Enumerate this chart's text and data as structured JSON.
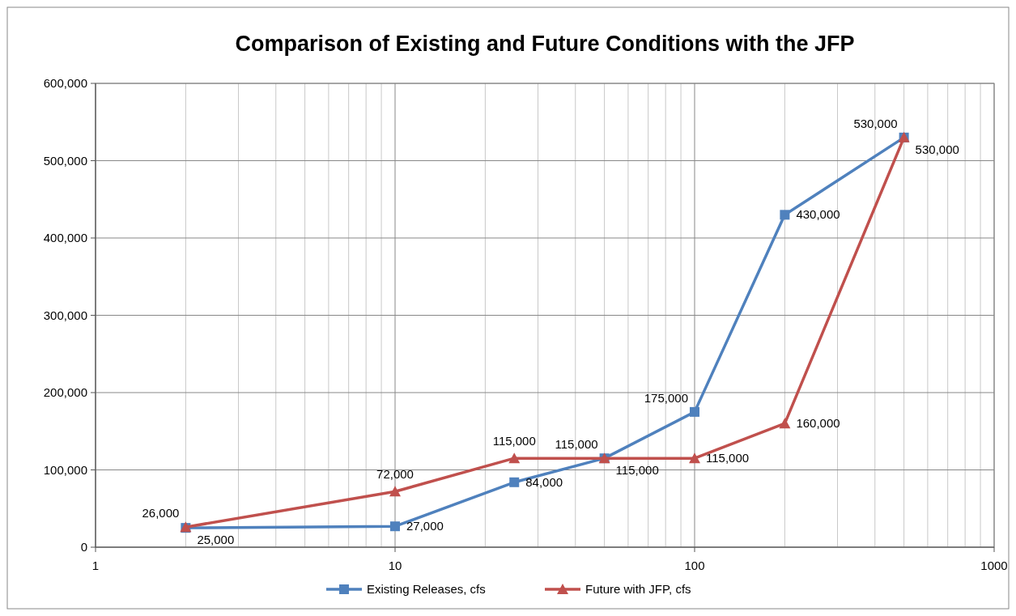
{
  "chart_data": {
    "type": "line",
    "title": "Comparison of Existing and Future Conditions with the JFP",
    "x": [
      2,
      10,
      25,
      50,
      100,
      200,
      500
    ],
    "log": "x",
    "xlim": [
      1,
      1000
    ],
    "xticks": [
      1,
      {
        "value": 2,
        "label": null
      },
      {
        "value": 3,
        "label": null
      },
      {
        "value": 4,
        "label": null
      },
      {
        "value": 5,
        "label": null
      },
      {
        "value": 6,
        "label": null
      },
      {
        "value": 7,
        "label": null
      },
      {
        "value": 8,
        "label": null
      },
      {
        "value": 9,
        "label": null
      },
      10,
      {
        "value": 20,
        "label": null
      },
      {
        "value": 30,
        "label": null
      },
      {
        "value": 40,
        "label": null
      },
      {
        "value": 50,
        "label": null
      },
      {
        "value": 60,
        "label": null
      },
      {
        "value": 70,
        "label": null
      },
      {
        "value": 80,
        "label": null
      },
      {
        "value": 90,
        "label": null
      },
      100,
      {
        "value": 200,
        "label": null
      },
      {
        "value": 300,
        "label": null
      },
      {
        "value": 400,
        "label": null
      },
      {
        "value": 500,
        "label": null
      },
      {
        "value": 600,
        "label": null
      },
      {
        "value": 700,
        "label": null
      },
      {
        "value": 800,
        "label": null
      },
      {
        "value": 900,
        "label": null
      },
      1000
    ],
    "ylim": [
      0,
      600000
    ],
    "yticks": [
      {
        "value": 0,
        "label": "0"
      },
      {
        "value": 100000,
        "label": "100,000"
      },
      {
        "value": 200000,
        "label": "200,000"
      },
      {
        "value": 300000,
        "label": "300,000"
      },
      {
        "value": 400000,
        "label": "400,000"
      },
      {
        "value": 500000,
        "label": "500,000"
      },
      {
        "value": 600000,
        "label": "600,000"
      }
    ],
    "grid": true,
    "legend": "bottom",
    "line_style": "solid",
    "series": [
      {
        "name": "Existing Releases, cfs",
        "color": "#4f81bd",
        "marker": "square",
        "values": [
          25000,
          27000,
          84000,
          115000,
          175000,
          430000,
          530000
        ],
        "value_labels": [
          "25,000",
          "27,000",
          "84,000",
          "115,000",
          "175,000",
          "430,000",
          "530,000"
        ]
      },
      {
        "name": "Future with JFP, cfs",
        "color": "#c0504d",
        "marker": "triangle",
        "values": [
          26000,
          72000,
          115000,
          115000,
          115000,
          160000,
          530000
        ],
        "value_labels": [
          "26,000",
          "72,000",
          "115,000",
          "115,000",
          "115,000",
          "160,000",
          "530,000"
        ]
      }
    ]
  }
}
